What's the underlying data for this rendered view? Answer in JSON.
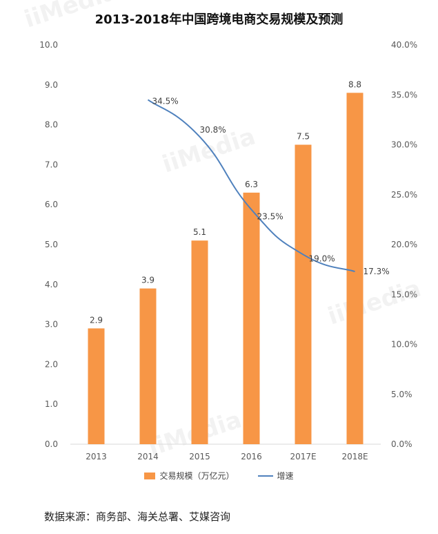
{
  "title": "2013-2018年中国跨境电商交易规模及预测",
  "source": "数据来源：商务部、海关总署、艾媒咨询",
  "watermark": "iiMedia",
  "colors": {
    "bar": "#F79646",
    "line": "#4F81BD",
    "grid": "#D9D9D9",
    "axis_text": "#595959"
  },
  "chart_data": {
    "type": "bar",
    "categories": [
      "2013",
      "2014",
      "2015",
      "2016",
      "2017E",
      "2018E"
    ],
    "series": [
      {
        "name": "交易规模（万亿元）",
        "type": "bar",
        "axis": "left",
        "values": [
          2.9,
          3.9,
          5.1,
          6.3,
          7.5,
          8.8
        ],
        "labels": [
          "2.9",
          "3.9",
          "5.1",
          "6.3",
          "7.5",
          "8.8"
        ]
      },
      {
        "name": "增速",
        "type": "line",
        "axis": "right",
        "values": [
          null,
          34.5,
          30.8,
          23.5,
          19.0,
          17.3
        ],
        "labels": [
          "",
          "34.5%",
          "30.8%",
          "23.5%",
          "19.0%",
          "17.3%"
        ]
      }
    ],
    "left_axis": {
      "min": 0,
      "max": 10,
      "ticks": [
        "0.0",
        "1.0",
        "2.0",
        "3.0",
        "4.0",
        "5.0",
        "6.0",
        "7.0",
        "8.0",
        "9.0",
        "10.0"
      ]
    },
    "right_axis": {
      "min": 0,
      "max": 40,
      "ticks": [
        "0.0%",
        "5.0%",
        "10.0%",
        "15.0%",
        "20.0%",
        "25.0%",
        "30.0%",
        "35.0%",
        "40.0%"
      ]
    },
    "grid": false,
    "legend_position": "bottom"
  }
}
